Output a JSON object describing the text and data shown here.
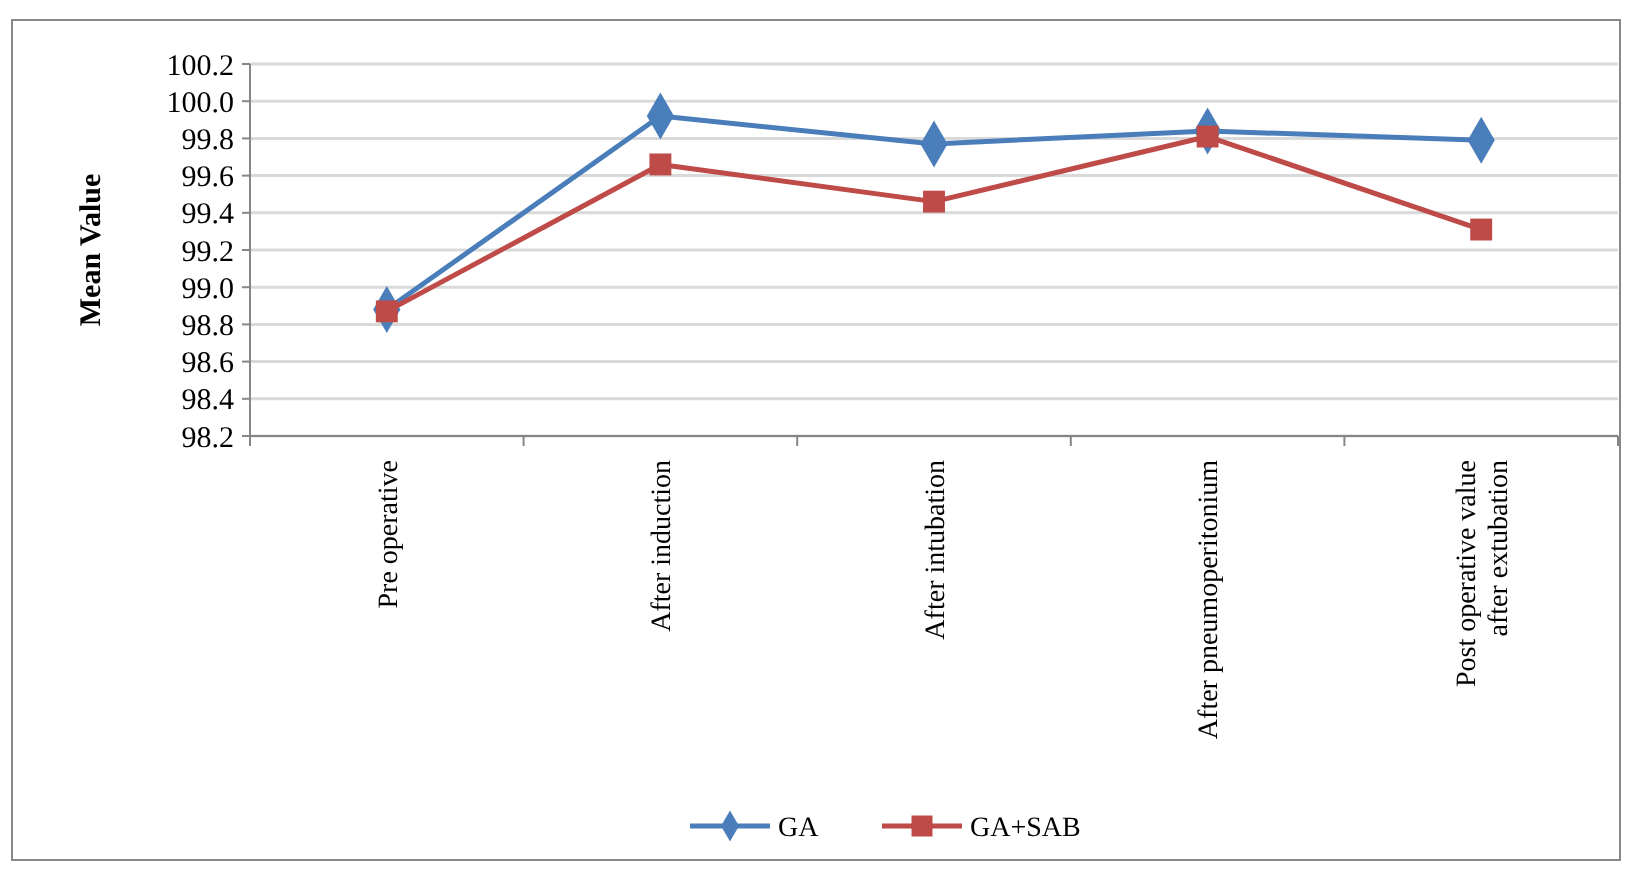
{
  "chart_data": {
    "type": "line",
    "ylabel": "Mean Value",
    "categories": [
      "Pre operative",
      "After induction",
      "After intubation",
      "After pneumoperitonium",
      "Post operative value after extubation"
    ],
    "series": [
      {
        "name": "GA",
        "color": "#4a7ebb",
        "marker": "diamond",
        "values": [
          98.88,
          99.92,
          99.77,
          99.84,
          99.79
        ]
      },
      {
        "name": "GA+SAB",
        "color": "#be4b48",
        "marker": "square",
        "values": [
          98.87,
          99.66,
          99.46,
          99.81,
          99.31
        ]
      }
    ],
    "ylim": [
      98.2,
      100.2
    ],
    "yticks": [
      {
        "value": 98.2,
        "label": "98.2"
      },
      {
        "value": 98.4,
        "label": "98.4"
      },
      {
        "value": 98.6,
        "label": "98.6"
      },
      {
        "value": 98.8,
        "label": "98.8"
      },
      {
        "value": 99.0,
        "label": "99.0"
      },
      {
        "value": 99.2,
        "label": "99.2"
      },
      {
        "value": 99.4,
        "label": "99.4"
      },
      {
        "value": 99.6,
        "label": "99.6"
      },
      {
        "value": 99.8,
        "label": "99.8"
      },
      {
        "value": 100.0,
        "label": "100.0"
      },
      {
        "value": 100.2,
        "label": "100.2"
      }
    ],
    "grid": "y",
    "legend": "bottom",
    "line_style": "solid"
  }
}
